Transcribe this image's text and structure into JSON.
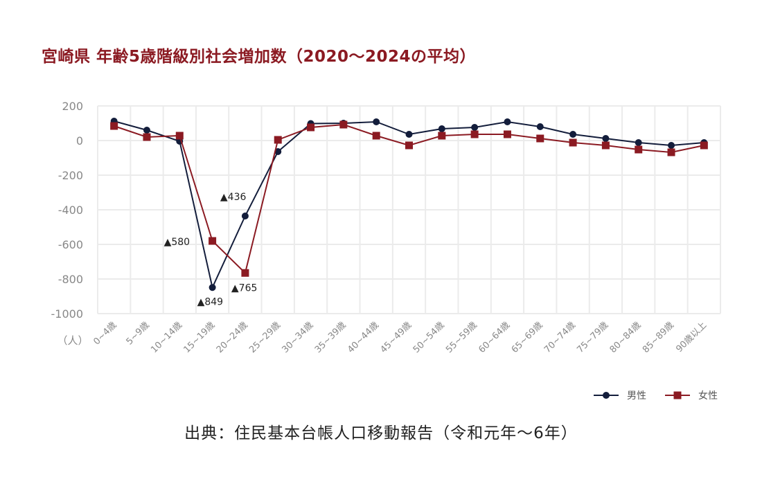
{
  "chart_data": {
    "type": "line",
    "title": "宮崎県 年齢5歳階級別社会増加数（2020～2024の平均）",
    "ylabel": "（人）",
    "xlabel": "",
    "ylim": [
      -1000,
      200
    ],
    "yticks": [
      200,
      0,
      -200,
      -400,
      -600,
      -800,
      -1000
    ],
    "grid": true,
    "legend_position": "bottom-right",
    "categories": [
      "0~4歳",
      "5~9歳",
      "10~14歳",
      "15~19歳",
      "20~24歳",
      "25~29歳",
      "30~34歳",
      "35~39歳",
      "40~44歳",
      "45~49歳",
      "50~54歳",
      "55~59歳",
      "60~64歳",
      "65~69歳",
      "70~74歳",
      "75~79歳",
      "80~84歳",
      "85~89歳",
      "90歳以上"
    ],
    "series": [
      {
        "name": "男性",
        "color": "#131d3b",
        "marker": "circle",
        "values": [
          112,
          60,
          -4,
          -849,
          -436,
          -64,
          98,
          100,
          108,
          36,
          68,
          76,
          108,
          80,
          36,
          12,
          -12,
          -28,
          -12
        ]
      },
      {
        "name": "女性",
        "color": "#8b1a22",
        "marker": "square",
        "values": [
          84,
          20,
          28,
          -580,
          -765,
          4,
          76,
          92,
          28,
          -28,
          28,
          36,
          36,
          12,
          -12,
          -28,
          -52,
          -68,
          -28
        ]
      }
    ],
    "annotations": [
      {
        "text": "▲580",
        "series": 1,
        "index": 3
      },
      {
        "text": "▲849",
        "series": 0,
        "index": 3
      },
      {
        "text": "▲436",
        "series": 0,
        "index": 4
      },
      {
        "text": "▲765",
        "series": 1,
        "index": 4
      }
    ]
  },
  "source": "出典：住民基本台帳人口移動報告（令和元年～6年）"
}
